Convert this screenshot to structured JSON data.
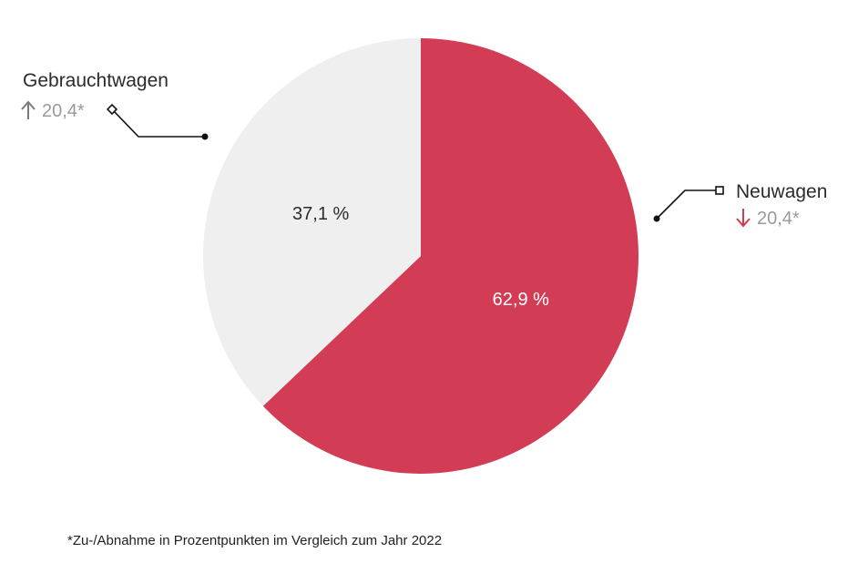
{
  "chart_data": {
    "type": "pie",
    "slices": [
      {
        "name": "Neuwagen",
        "value": 62.9,
        "label": "62,9 %",
        "color": "#d33c55",
        "change_label": "20,4*",
        "change_direction": "down",
        "change_arrow_color": "#d33c55",
        "label_color": "#ffffff"
      },
      {
        "name": "Gebrauchtwagen",
        "value": 37.1,
        "label": "37,1 %",
        "color": "#efefef",
        "change_label": "20,4*",
        "change_direction": "up",
        "change_arrow_color": "#7a7a7a",
        "label_color": "#2b2b2b"
      }
    ],
    "start_angle": "12 o'clock",
    "direction": "clockwise"
  },
  "footnote": "*Zu-/Abnahme in Prozentpunkten im Vergleich zum Jahr 2022"
}
